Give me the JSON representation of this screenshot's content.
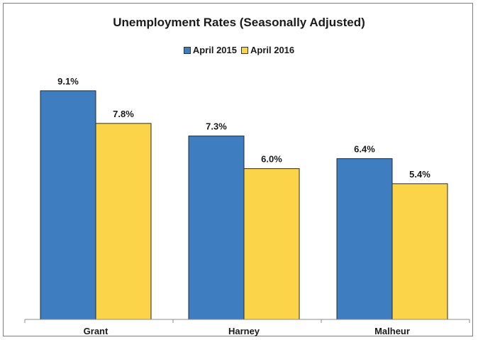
{
  "chart_data": {
    "type": "bar",
    "title": "Unemployment Rates (Seasonally Adjusted)",
    "xlabel": "",
    "ylabel": "",
    "categories": [
      "Grant",
      "Harney",
      "Malheur"
    ],
    "series": [
      {
        "name": "April 2015",
        "color": "#3e7ec0",
        "values": [
          9.1,
          7.3,
          6.4
        ],
        "labels": [
          "9.1%",
          "7.3%",
          "6.4%"
        ]
      },
      {
        "name": "April 2016",
        "color": "#fcd44a",
        "values": [
          7.8,
          6.0,
          5.4
        ],
        "labels": [
          "7.8%",
          "6.0%",
          "5.4%"
        ]
      }
    ],
    "ylim": [
      0,
      10
    ],
    "grid": false,
    "legend_position": "top"
  }
}
